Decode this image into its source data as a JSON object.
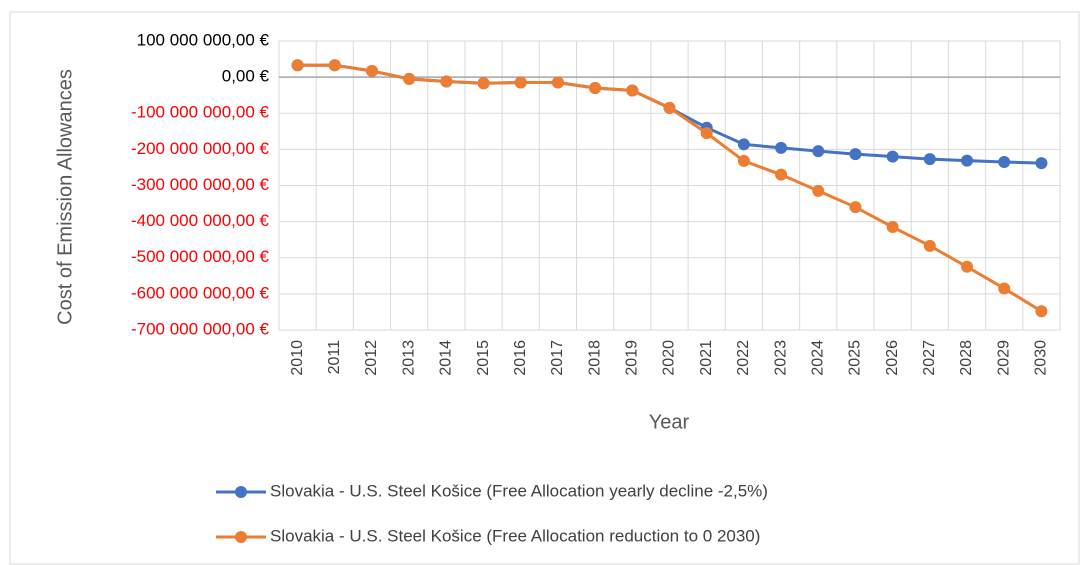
{
  "chart_data": {
    "type": "line",
    "y_label": "Cost of Emission Allowances",
    "x_label": "Year",
    "categories": [
      "2010",
      "2011",
      "2012",
      "2013",
      "2014",
      "2015",
      "2016",
      "2017",
      "2018",
      "2019",
      "2020",
      "2021",
      "2022",
      "2023",
      "2024",
      "2025",
      "2026",
      "2027",
      "2028",
      "2029",
      "2030"
    ],
    "series": [
      {
        "name": "Slovakia - U.S. Steel Košice (Free Allocation yearly decline -2,5%)",
        "color": "#4472c4",
        "values": [
          33000000,
          33000000,
          17000000,
          -5000000,
          -12000000,
          -17000000,
          -15000000,
          -15000000,
          -30000000,
          -37000000,
          -85000000,
          -140000000,
          -186000000,
          -196000000,
          -205000000,
          -213000000,
          -220000000,
          -227000000,
          -231000000,
          -235000000,
          -238000000
        ]
      },
      {
        "name": "Slovakia - U.S. Steel Košice (Free Allocation reduction to 0 2030)",
        "color": "#ed7d31",
        "values": [
          33000000,
          33000000,
          17000000,
          -5000000,
          -12000000,
          -17000000,
          -15000000,
          -15000000,
          -30000000,
          -37000000,
          -85000000,
          -155000000,
          -232000000,
          -270000000,
          -315000000,
          -360000000,
          -415000000,
          -467000000,
          -525000000,
          -585000000,
          -648000000
        ]
      }
    ],
    "ylim": [
      -700000000,
      100000000
    ],
    "yticks": [
      {
        "value": 100000000,
        "label": "100 000 000,00 €"
      },
      {
        "value": 0,
        "label": "0,00 €"
      },
      {
        "value": -100000000,
        "label": "-100 000 000,00 €"
      },
      {
        "value": -200000000,
        "label": "-200 000 000,00 €"
      },
      {
        "value": -300000000,
        "label": "-300 000 000,00 €"
      },
      {
        "value": -400000000,
        "label": "-400 000 000,00 €"
      },
      {
        "value": -500000000,
        "label": "-500 000 000,00 €"
      },
      {
        "value": -600000000,
        "label": "-600 000 000,00 €"
      },
      {
        "value": -700000000,
        "label": "-700 000 000,00 €"
      }
    ],
    "negative_tick_color": "#ff0000",
    "grid": true,
    "legend": "bottom"
  }
}
